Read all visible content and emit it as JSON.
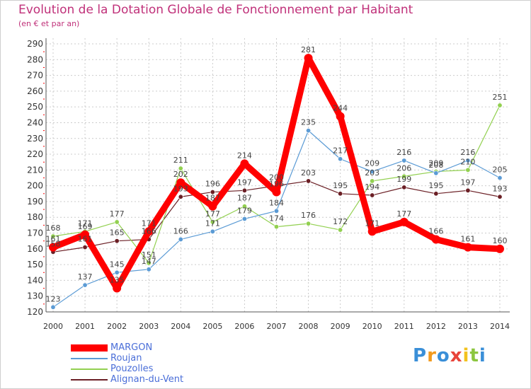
{
  "chart_data": {
    "type": "line",
    "title": "Evolution de la Dotation Globale de Fonctionnement par Habitant",
    "subtitle": "(en € et par an)",
    "xlabel": "",
    "ylabel": "",
    "ylim": [
      120,
      290
    ],
    "ytick_step": 10,
    "categories": [
      "2000",
      "2001",
      "2002",
      "2003",
      "2004",
      "2005",
      "2006",
      "2007",
      "2008",
      "2009",
      "2010",
      "2011",
      "2012",
      "2013",
      "2014"
    ],
    "series": [
      {
        "name": "MARGON",
        "color": "#ff0000",
        "values": [
          161,
          169,
          135,
          171,
          202,
          187,
          214,
          196,
          281,
          244,
          171,
          177,
          166,
          161,
          160
        ],
        "labels": [
          "161",
          "169",
          "135",
          "171",
          "202",
          "187",
          "214",
          "196",
          "281",
          "244",
          "171",
          "177",
          "166",
          "161",
          "160"
        ]
      },
      {
        "name": "Roujan",
        "color": "#5b9bd5",
        "values": [
          123,
          137,
          145,
          147,
          166,
          171,
          179,
          184,
          235,
          217,
          209,
          216,
          208,
          216,
          205
        ],
        "labels": [
          "123",
          "137",
          "145",
          "147",
          "166",
          "171",
          "179",
          "184",
          "235",
          "217",
          "209",
          "216",
          "208",
          "216",
          "205"
        ]
      },
      {
        "name": "Pouzolles",
        "color": "#92d050",
        "values": [
          168,
          171,
          177,
          151,
          211,
          177,
          187,
          174,
          176,
          172,
          203,
          206,
          209,
          210,
          251
        ],
        "labels": [
          "168",
          "171",
          "177",
          "151",
          "211",
          "177",
          "187",
          "174",
          "176",
          "172",
          "203",
          "206",
          "209",
          "210",
          "251"
        ]
      },
      {
        "name": "Alignan-du-Vent",
        "color": "#6b1f25",
        "values": [
          158,
          161,
          165,
          166,
          193,
          196,
          197,
          200,
          203,
          195,
          194,
          199,
          195,
          197,
          193
        ],
        "labels": [
          "158",
          "161",
          "165",
          "166",
          "193",
          "196",
          "197",
          "200",
          "203",
          "195",
          "194",
          "199",
          "195",
          "197",
          "193"
        ]
      }
    ],
    "grid": true,
    "legend_position": "bottom-left"
  },
  "logo": {
    "text": "Proxiti",
    "letters": [
      "P",
      "r",
      "o",
      "x",
      "i",
      "t",
      "i"
    ],
    "colors": [
      "#3a8fd8",
      "#f29a1e",
      "#3a8fd8",
      "#e8443a",
      "#f2c21e",
      "#8cc63f",
      "#3a8fd8"
    ]
  }
}
